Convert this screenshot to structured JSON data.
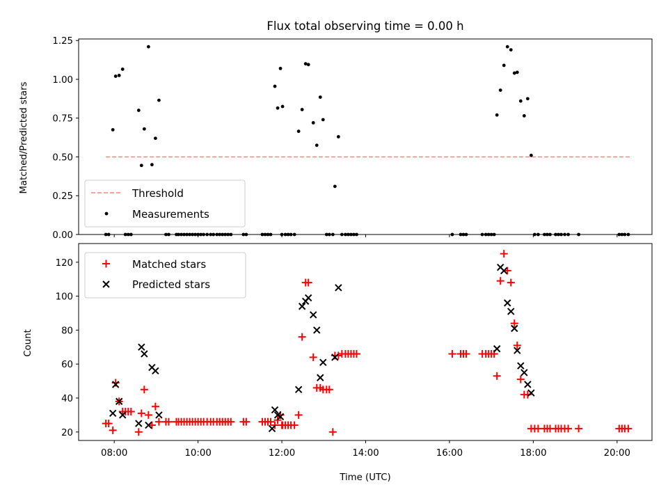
{
  "chart_data": [
    {
      "type": "scatter",
      "title": "Flux total observing time = 0.00 h",
      "xlabel": "",
      "ylabel": "Matched/Predicted stars",
      "ylim": [
        0,
        1.26
      ],
      "xlim": [
        "07:09",
        "20:50"
      ],
      "yticks": [
        "0.00",
        "0.25",
        "0.50",
        "0.75",
        "1.00",
        "1.25"
      ],
      "legend_position": "lower-left",
      "grid": false,
      "threshold": {
        "name": "Threshold",
        "value": 0.5,
        "x_range": [
          "07:48",
          "20:18"
        ],
        "color": "#ff7f7f",
        "style": "dashed"
      },
      "series": [
        {
          "name": "Measurements",
          "color": "#000000",
          "marker": "dot",
          "points": [
            [
              "07:48",
              0
            ],
            [
              "07:52",
              0
            ],
            [
              "07:58",
              0.675
            ],
            [
              "08:02",
              1.02
            ],
            [
              "08:07",
              1.025
            ],
            [
              "08:12",
              1.065
            ],
            [
              "08:16",
              0
            ],
            [
              "08:20",
              0
            ],
            [
              "08:24",
              0
            ],
            [
              "08:35",
              0.8
            ],
            [
              "08:39",
              0.445
            ],
            [
              "08:43",
              0.68
            ],
            [
              "08:49",
              1.21
            ],
            [
              "08:54",
              0.45
            ],
            [
              "08:59",
              0.62
            ],
            [
              "09:04",
              0.865
            ],
            [
              "09:14",
              0
            ],
            [
              "09:18",
              0
            ],
            [
              "09:29",
              0
            ],
            [
              "09:32",
              0
            ],
            [
              "09:36",
              0
            ],
            [
              "09:40",
              0
            ],
            [
              "09:44",
              0
            ],
            [
              "09:48",
              0
            ],
            [
              "09:52",
              0
            ],
            [
              "09:56",
              0
            ],
            [
              "10:00",
              0
            ],
            [
              "10:04",
              0
            ],
            [
              "10:08",
              0
            ],
            [
              "10:13",
              0
            ],
            [
              "10:18",
              0
            ],
            [
              "10:22",
              0
            ],
            [
              "10:27",
              0
            ],
            [
              "10:31",
              0
            ],
            [
              "10:35",
              0
            ],
            [
              "10:39",
              0
            ],
            [
              "10:43",
              0
            ],
            [
              "10:47",
              0
            ],
            [
              "11:05",
              0
            ],
            [
              "11:09",
              0
            ],
            [
              "11:32",
              0
            ],
            [
              "11:36",
              0
            ],
            [
              "11:40",
              0
            ],
            [
              "11:44",
              0
            ],
            [
              "11:50",
              0.955
            ],
            [
              "11:54",
              0.815
            ],
            [
              "11:58",
              1.07
            ],
            [
              "12:00",
              0
            ],
            [
              "12:01",
              0.825
            ],
            [
              "12:05",
              0
            ],
            [
              "12:09",
              0
            ],
            [
              "12:13",
              0
            ],
            [
              "12:18",
              0
            ],
            [
              "12:24",
              0.665
            ],
            [
              "12:29",
              0.805
            ],
            [
              "12:34",
              1.1
            ],
            [
              "12:38",
              1.095
            ],
            [
              "12:45",
              0.72
            ],
            [
              "12:50",
              0.575
            ],
            [
              "12:55",
              0.885
            ],
            [
              "12:59",
              0.74
            ],
            [
              "13:04",
              0
            ],
            [
              "13:08",
              0
            ],
            [
              "13:13",
              0
            ],
            [
              "13:16",
              0.31
            ],
            [
              "13:21",
              0.63
            ],
            [
              "13:26",
              0
            ],
            [
              "13:31",
              0
            ],
            [
              "13:35",
              0
            ],
            [
              "13:39",
              0
            ],
            [
              "13:43",
              0
            ],
            [
              "13:47",
              0
            ],
            [
              "16:04",
              0
            ],
            [
              "16:16",
              0
            ],
            [
              "16:20",
              0
            ],
            [
              "16:24",
              0
            ],
            [
              "16:47",
              0
            ],
            [
              "16:52",
              0
            ],
            [
              "16:56",
              0
            ],
            [
              "17:00",
              0
            ],
            [
              "17:04",
              0
            ],
            [
              "17:08",
              0.77
            ],
            [
              "17:13",
              0.93
            ],
            [
              "17:18",
              1.09
            ],
            [
              "17:23",
              1.21
            ],
            [
              "17:28",
              1.19
            ],
            [
              "17:33",
              1.04
            ],
            [
              "17:37",
              1.045
            ],
            [
              "17:42",
              0.86
            ],
            [
              "17:47",
              0.765
            ],
            [
              "17:52",
              0.875
            ],
            [
              "17:57",
              0.51
            ],
            [
              "18:02",
              0
            ],
            [
              "18:07",
              0
            ],
            [
              "18:16",
              0
            ],
            [
              "18:20",
              0
            ],
            [
              "18:24",
              0
            ],
            [
              "18:32",
              0
            ],
            [
              "18:36",
              0
            ],
            [
              "18:40",
              0
            ],
            [
              "18:45",
              0
            ],
            [
              "18:50",
              0
            ],
            [
              "19:05",
              0
            ],
            [
              "20:03",
              0
            ],
            [
              "20:07",
              0
            ],
            [
              "20:11",
              0
            ],
            [
              "20:16",
              0
            ]
          ]
        }
      ]
    },
    {
      "type": "scatter",
      "title": "",
      "xlabel": "Time (UTC)",
      "ylabel": "Count",
      "ylim": [
        15,
        131
      ],
      "xlim": [
        "07:09",
        "20:50"
      ],
      "xticks": [
        "08:00",
        "10:00",
        "12:00",
        "14:00",
        "16:00",
        "18:00",
        "20:00"
      ],
      "yticks": [
        "20",
        "40",
        "60",
        "80",
        "100",
        "120"
      ],
      "legend_position": "upper-left",
      "grid": false,
      "series": [
        {
          "name": "Matched stars",
          "color": "#ff0000",
          "marker": "plus",
          "points": [
            [
              "07:48",
              25
            ],
            [
              "07:52",
              25
            ],
            [
              "07:58",
              21
            ],
            [
              "08:02",
              49
            ],
            [
              "08:07",
              38
            ],
            [
              "08:12",
              32
            ],
            [
              "08:16",
              32
            ],
            [
              "08:20",
              32
            ],
            [
              "08:24",
              32
            ],
            [
              "08:35",
              20
            ],
            [
              "08:39",
              31
            ],
            [
              "08:43",
              45
            ],
            [
              "08:49",
              30
            ],
            [
              "08:54",
              24
            ],
            [
              "08:59",
              35
            ],
            [
              "09:04",
              26
            ],
            [
              "09:14",
              26
            ],
            [
              "09:18",
              26
            ],
            [
              "09:29",
              26
            ],
            [
              "09:32",
              26
            ],
            [
              "09:36",
              26
            ],
            [
              "09:40",
              26
            ],
            [
              "09:44",
              26
            ],
            [
              "09:48",
              26
            ],
            [
              "09:52",
              26
            ],
            [
              "09:56",
              26
            ],
            [
              "10:00",
              26
            ],
            [
              "10:04",
              26
            ],
            [
              "10:08",
              26
            ],
            [
              "10:13",
              26
            ],
            [
              "10:18",
              26
            ],
            [
              "10:22",
              26
            ],
            [
              "10:27",
              26
            ],
            [
              "10:31",
              26
            ],
            [
              "10:35",
              26
            ],
            [
              "10:39",
              26
            ],
            [
              "10:43",
              26
            ],
            [
              "10:47",
              26
            ],
            [
              "11:05",
              26
            ],
            [
              "11:09",
              26
            ],
            [
              "11:32",
              26
            ],
            [
              "11:36",
              26
            ],
            [
              "11:40",
              26
            ],
            [
              "11:44",
              26
            ],
            [
              "11:50",
              24
            ],
            [
              "11:54",
              27
            ],
            [
              "11:58",
              30
            ],
            [
              "12:00",
              24
            ],
            [
              "12:01",
              24
            ],
            [
              "12:05",
              24
            ],
            [
              "12:09",
              24
            ],
            [
              "12:13",
              24
            ],
            [
              "12:18",
              24
            ],
            [
              "12:24",
              30
            ],
            [
              "12:29",
              76
            ],
            [
              "12:34",
              108
            ],
            [
              "12:38",
              108
            ],
            [
              "12:45",
              64
            ],
            [
              "12:50",
              46
            ],
            [
              "12:55",
              46
            ],
            [
              "12:59",
              45
            ],
            [
              "13:04",
              45
            ],
            [
              "13:08",
              45
            ],
            [
              "13:13",
              20
            ],
            [
              "13:16",
              65
            ],
            [
              "13:21",
              65
            ],
            [
              "13:26",
              66
            ],
            [
              "13:31",
              66
            ],
            [
              "13:35",
              66
            ],
            [
              "13:39",
              66
            ],
            [
              "13:43",
              66
            ],
            [
              "13:47",
              66
            ],
            [
              "16:04",
              66
            ],
            [
              "16:16",
              66
            ],
            [
              "16:20",
              66
            ],
            [
              "16:24",
              66
            ],
            [
              "16:47",
              66
            ],
            [
              "16:52",
              66
            ],
            [
              "16:56",
              66
            ],
            [
              "17:00",
              66
            ],
            [
              "17:04",
              66
            ],
            [
              "17:08",
              53
            ],
            [
              "17:13",
              109
            ],
            [
              "17:18",
              125
            ],
            [
              "17:23",
              115
            ],
            [
              "17:28",
              108
            ],
            [
              "17:33",
              84
            ],
            [
              "17:37",
              71
            ],
            [
              "17:42",
              51
            ],
            [
              "17:47",
              42
            ],
            [
              "17:52",
              42
            ],
            [
              "17:57",
              22
            ],
            [
              "18:02",
              22
            ],
            [
              "18:07",
              22
            ],
            [
              "18:16",
              22
            ],
            [
              "18:20",
              22
            ],
            [
              "18:24",
              22
            ],
            [
              "18:32",
              22
            ],
            [
              "18:36",
              22
            ],
            [
              "18:40",
              22
            ],
            [
              "18:45",
              22
            ],
            [
              "18:50",
              22
            ],
            [
              "19:05",
              22
            ],
            [
              "20:03",
              22
            ],
            [
              "20:07",
              22
            ],
            [
              "20:11",
              22
            ],
            [
              "20:16",
              22
            ]
          ]
        },
        {
          "name": "Predicted stars",
          "color": "#000000",
          "marker": "x",
          "points": [
            [
              "07:58",
              31
            ],
            [
              "08:02",
              48
            ],
            [
              "08:07",
              38
            ],
            [
              "08:12",
              30
            ],
            [
              "08:35",
              25
            ],
            [
              "08:39",
              70
            ],
            [
              "08:43",
              66
            ],
            [
              "08:49",
              24
            ],
            [
              "08:54",
              58
            ],
            [
              "08:59",
              56
            ],
            [
              "09:04",
              30
            ],
            [
              "11:46",
              22
            ],
            [
              "11:50",
              33
            ],
            [
              "11:54",
              30
            ],
            [
              "11:58",
              29
            ],
            [
              "12:24",
              45
            ],
            [
              "12:29",
              94
            ],
            [
              "12:34",
              97
            ],
            [
              "12:38",
              99
            ],
            [
              "12:45",
              89
            ],
            [
              "12:50",
              80
            ],
            [
              "12:55",
              52
            ],
            [
              "12:59",
              61
            ],
            [
              "13:16",
              64
            ],
            [
              "13:21",
              105
            ],
            [
              "17:08",
              69
            ],
            [
              "17:13",
              117
            ],
            [
              "17:18",
              115
            ],
            [
              "17:23",
              96
            ],
            [
              "17:28",
              91
            ],
            [
              "17:33",
              81
            ],
            [
              "17:37",
              68
            ],
            [
              "17:42",
              59
            ],
            [
              "17:47",
              55
            ],
            [
              "17:52",
              48
            ],
            [
              "17:57",
              43
            ]
          ]
        }
      ]
    }
  ]
}
